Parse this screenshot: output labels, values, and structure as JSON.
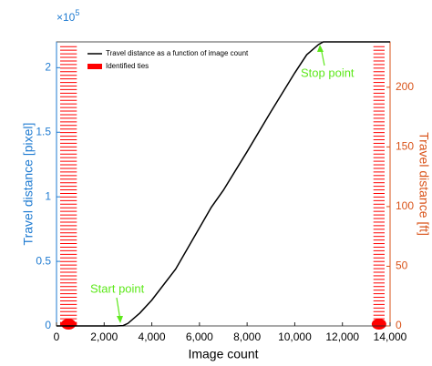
{
  "chart_data": {
    "type": "line",
    "xlabel": "Image count",
    "ylabel": "Travel distance [pixel]",
    "y2label": "Travel distance [ft]",
    "y_multiplier": "×10",
    "y_multiplier_exp": "5",
    "xlim": [
      0,
      14000
    ],
    "xticks": [
      0,
      {
        "value": 2000,
        "label": "2,000"
      },
      {
        "value": 4000,
        "label": "4,000"
      },
      {
        "value": 6000,
        "label": "6,000"
      },
      {
        "value": 8000,
        "label": "8,000"
      },
      {
        "value": 10000,
        "label": "10,000"
      },
      {
        "value": 12000,
        "label": "12,000"
      },
      {
        "value": 14000,
        "label": "14,000"
      }
    ],
    "ylim": [
      0,
      2.2
    ],
    "yticks": [
      0,
      0.5,
      1,
      1.5,
      2
    ],
    "y2lim": [
      0,
      238
    ],
    "y2ticks": [
      0,
      50,
      100,
      150,
      200
    ],
    "left_axis_color": "#1f7bd1",
    "right_axis_color": "#d95319",
    "series": [
      {
        "name": "Travel distance as a function of image count",
        "color": "#000000",
        "x": [
          0,
          2500,
          2800,
          3000,
          3500,
          4000,
          5000,
          6000,
          6500,
          7000,
          8000,
          9000,
          10000,
          10500,
          11000,
          11200,
          12000,
          14000
        ],
        "values": [
          0,
          0,
          0.003,
          0.02,
          0.1,
          0.2,
          0.44,
          0.76,
          0.92,
          1.05,
          1.35,
          1.66,
          1.96,
          2.1,
          2.18,
          2.2,
          2.2,
          2.2
        ]
      },
      {
        "name": "Identified ties",
        "color": "#ff0000",
        "axis": "y2",
        "values": [
          0,
          0.6,
          1.2,
          1.8,
          2.4,
          3,
          6,
          9,
          12,
          15,
          18,
          21,
          24,
          27,
          30,
          33,
          36,
          39,
          42,
          45,
          48,
          51,
          54,
          57,
          60,
          63,
          66,
          69,
          72,
          75,
          78,
          81,
          84,
          87,
          90,
          93,
          96,
          99,
          102,
          105,
          108,
          111,
          114,
          117,
          120,
          123,
          126,
          129,
          132,
          135,
          138,
          141,
          144,
          147,
          150,
          153,
          156,
          159,
          162,
          165,
          168,
          171,
          174,
          177,
          180,
          183,
          186,
          189,
          192,
          195,
          198,
          201,
          204,
          207,
          210,
          213,
          216,
          219,
          222,
          225,
          228,
          231,
          234
        ]
      }
    ],
    "annotations": [
      {
        "text": "Start point",
        "color": "#5ee81c"
      },
      {
        "text": "Stop point",
        "color": "#5ee81c"
      }
    ]
  }
}
